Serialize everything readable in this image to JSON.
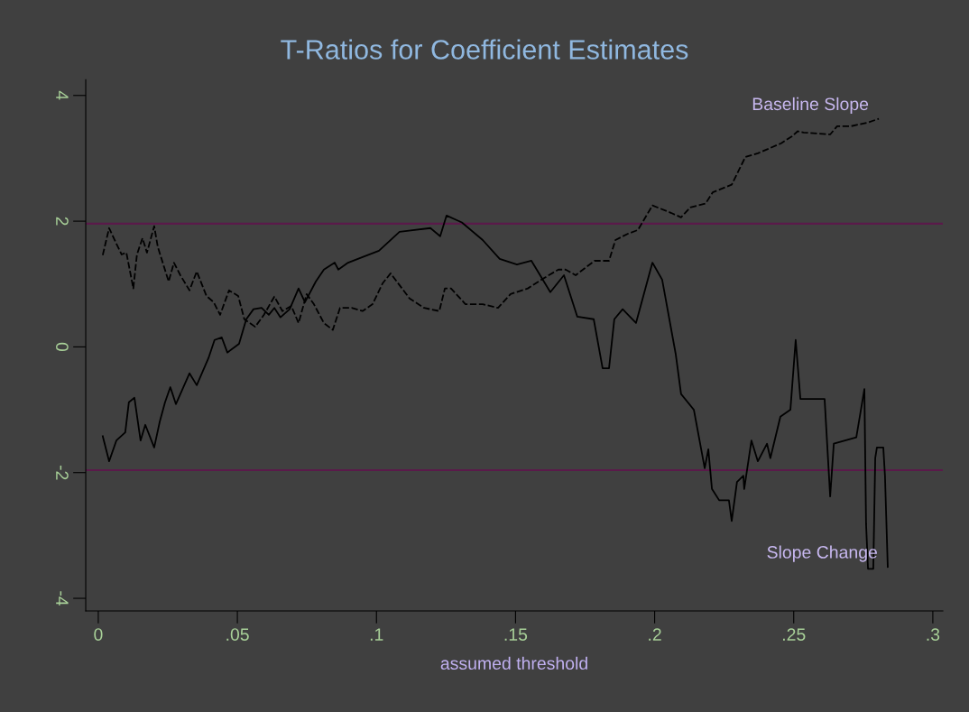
{
  "chart_data": {
    "type": "line",
    "title": "T-Ratios for Coefficient Estimates",
    "xlabel": "assumed threshold",
    "xlim": [
      -0.0045,
      0.3036
    ],
    "ylim": [
      -4.2,
      4.25
    ],
    "xticks": [
      0,
      {
        "value": 0.05,
        "label": ".05"
      },
      {
        "value": 0.1,
        "label": ".1"
      },
      {
        "value": 0.15,
        "label": ".15"
      },
      {
        "value": 0.2,
        "label": ".2"
      },
      {
        "value": 0.25,
        "label": ".25"
      },
      {
        "value": 0.3,
        "label": ".3"
      }
    ],
    "yticks": [
      -4,
      -2,
      0,
      2,
      4
    ],
    "grid": false,
    "legend": false,
    "marker": "none",
    "ref_lines": [
      {
        "axis": "y",
        "value": 1.96,
        "color": "#5a1a4a"
      },
      {
        "axis": "y",
        "value": -1.96,
        "color": "#5a1a4a"
      }
    ],
    "series": [
      {
        "name": "Slope Change",
        "color": "#000000",
        "line_style": "solid",
        "x": [
          0.0016,
          0.0039,
          0.0065,
          0.0097,
          0.011,
          0.013,
          0.0152,
          0.0169,
          0.0201,
          0.0221,
          0.024,
          0.0259,
          0.0279,
          0.0328,
          0.0354,
          0.0396,
          0.0418,
          0.0444,
          0.0464,
          0.0506,
          0.0532,
          0.0558,
          0.0587,
          0.0613,
          0.0633,
          0.0655,
          0.0688,
          0.072,
          0.0743,
          0.0782,
          0.0811,
          0.085,
          0.0863,
          0.0898,
          0.095,
          0.1009,
          0.1083,
          0.1194,
          0.1229,
          0.1252,
          0.1307,
          0.1382,
          0.1443,
          0.1505,
          0.1557,
          0.1625,
          0.1674,
          0.1722,
          0.1781,
          0.1813,
          0.1836,
          0.1855,
          0.1885,
          0.1933,
          0.1992,
          0.2027,
          0.2076,
          0.2095,
          0.2141,
          0.218,
          0.2193,
          0.2206,
          0.2232,
          0.2267,
          0.2277,
          0.2296,
          0.2319,
          0.2322,
          0.2348,
          0.2371,
          0.2404,
          0.2416,
          0.2452,
          0.2488,
          0.2507,
          0.2524,
          0.2611,
          0.2631,
          0.2644,
          0.2725,
          0.2754,
          0.276,
          0.2767,
          0.2786,
          0.2793,
          0.2799,
          0.2822,
          0.2828,
          0.2838
        ],
        "values": [
          -1.42,
          -1.82,
          -1.49,
          -1.36,
          -0.88,
          -0.81,
          -1.49,
          -1.24,
          -1.6,
          -1.19,
          -0.88,
          -0.64,
          -0.91,
          -0.42,
          -0.61,
          -0.18,
          0.11,
          0.15,
          -0.09,
          0.05,
          0.44,
          0.6,
          0.62,
          0.51,
          0.62,
          0.47,
          0.6,
          0.93,
          0.71,
          1.04,
          1.23,
          1.34,
          1.23,
          1.34,
          1.43,
          1.53,
          1.83,
          1.89,
          1.76,
          2.09,
          1.98,
          1.7,
          1.4,
          1.31,
          1.37,
          0.87,
          1.14,
          0.48,
          0.44,
          -0.34,
          -0.34,
          0.44,
          0.6,
          0.38,
          1.34,
          1.07,
          -0.12,
          -0.75,
          -1.0,
          -1.93,
          -1.63,
          -2.26,
          -2.44,
          -2.44,
          -2.77,
          -2.15,
          -2.05,
          -2.26,
          -1.49,
          -1.82,
          -1.54,
          -1.77,
          -1.11,
          -1.0,
          0.11,
          -0.83,
          -0.83,
          -2.38,
          -1.54,
          -1.44,
          -0.67,
          -2.81,
          -3.53,
          -3.53,
          -1.77,
          -1.6,
          -1.6,
          -2.05,
          -3.5
        ]
      },
      {
        "name": "Baseline Slope",
        "color": "#000000",
        "line_style": "dashed",
        "x": [
          0.0016,
          0.0039,
          0.0062,
          0.0084,
          0.0101,
          0.0126,
          0.0139,
          0.0159,
          0.0175,
          0.0201,
          0.0214,
          0.0253,
          0.0272,
          0.0295,
          0.0328,
          0.0354,
          0.0389,
          0.0415,
          0.0438,
          0.047,
          0.0503,
          0.0525,
          0.0564,
          0.0594,
          0.0633,
          0.0662,
          0.0694,
          0.072,
          0.0749,
          0.0775,
          0.0811,
          0.0843,
          0.0869,
          0.0911,
          0.095,
          0.0986,
          0.1022,
          0.1051,
          0.1119,
          0.1171,
          0.1226,
          0.1246,
          0.1268,
          0.132,
          0.1382,
          0.1437,
          0.1482,
          0.1544,
          0.1593,
          0.1654,
          0.168,
          0.1716,
          0.1784,
          0.1836,
          0.1859,
          0.1904,
          0.194,
          0.1992,
          0.206,
          0.2095,
          0.2128,
          0.2183,
          0.2209,
          0.2277,
          0.2326,
          0.2371,
          0.2455,
          0.2494,
          0.2514,
          0.2536,
          0.2631,
          0.2656,
          0.2705,
          0.2767,
          0.2806
        ],
        "values": [
          1.46,
          1.89,
          1.67,
          1.47,
          1.5,
          0.93,
          1.47,
          1.73,
          1.5,
          1.92,
          1.59,
          1.04,
          1.34,
          1.14,
          0.9,
          1.2,
          0.81,
          0.71,
          0.51,
          0.9,
          0.81,
          0.44,
          0.32,
          0.5,
          0.8,
          0.57,
          0.65,
          0.38,
          0.84,
          0.68,
          0.38,
          0.27,
          0.62,
          0.62,
          0.57,
          0.68,
          1.01,
          1.17,
          0.77,
          0.62,
          0.57,
          0.93,
          0.93,
          0.68,
          0.68,
          0.62,
          0.84,
          0.93,
          1.07,
          1.23,
          1.23,
          1.14,
          1.37,
          1.37,
          1.7,
          1.8,
          1.86,
          2.25,
          2.13,
          2.06,
          2.22,
          2.28,
          2.46,
          2.58,
          3.02,
          3.08,
          3.24,
          3.35,
          3.43,
          3.41,
          3.38,
          3.51,
          3.51,
          3.57,
          3.63
        ]
      }
    ]
  }
}
